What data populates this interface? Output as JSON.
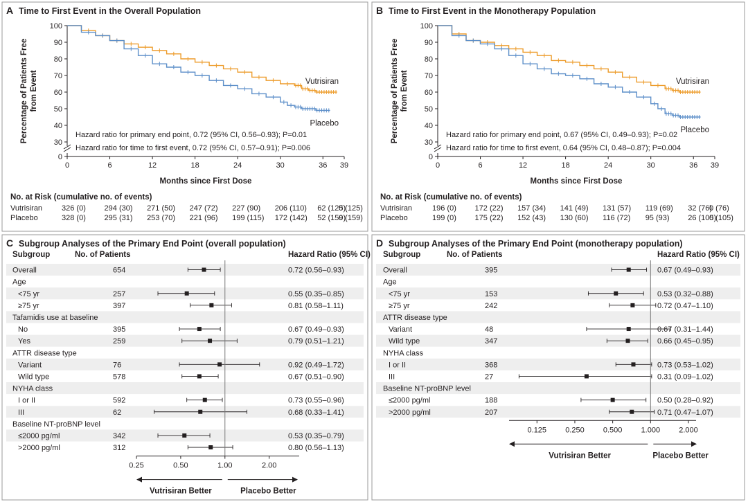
{
  "colors": {
    "vutrisiran": "#ed9c2b",
    "placebo": "#5d8fc9",
    "band": "#eeeeee",
    "border": "#9a9a9a",
    "ink": "#231f20"
  },
  "panels": {
    "a": {
      "letter": "A",
      "title": "Time to First Event in the Overall Population"
    },
    "b": {
      "letter": "B",
      "title": "Time to First Event in the Monotherapy Population"
    },
    "c": {
      "letter": "C",
      "title": "Subgroup Analyses of the Primary End Point (overall population)"
    },
    "d": {
      "letter": "D",
      "title": "Subgroup Analyses of the Primary End Point (monotherapy population)"
    }
  },
  "chart_data": [
    {
      "id": "km_overall",
      "type": "line",
      "title": "Time to First Event in the Overall Population",
      "xlabel": "Months since First Dose",
      "ylabel": "Percentage of Patients Free from Event",
      "xlim": [
        0,
        39
      ],
      "xticks": [
        0,
        6,
        12,
        18,
        24,
        30,
        36,
        39
      ],
      "ylim": [
        0,
        100
      ],
      "yticks": [
        0,
        30,
        40,
        50,
        60,
        70,
        80,
        90,
        100
      ],
      "y_axis_break": true,
      "series": [
        {
          "name": "Vutrisiran",
          "x": [
            0,
            2,
            4,
            6,
            8,
            10,
            12,
            14,
            16,
            18,
            20,
            22,
            24,
            26,
            28,
            30,
            32,
            33,
            34,
            35,
            36,
            37,
            38
          ],
          "y": [
            100,
            97,
            94,
            91,
            89,
            87,
            85,
            83,
            80,
            78,
            76,
            74,
            72,
            69,
            67,
            65,
            64,
            62,
            61,
            60,
            60,
            60,
            60
          ]
        },
        {
          "name": "Placebo",
          "x": [
            0,
            2,
            4,
            6,
            8,
            10,
            12,
            14,
            16,
            18,
            20,
            22,
            24,
            26,
            28,
            30,
            31,
            32,
            33,
            34,
            35,
            36,
            37
          ],
          "y": [
            100,
            96,
            94,
            91,
            86,
            82,
            77,
            75,
            72,
            70,
            67,
            64,
            62,
            59,
            57,
            54,
            52,
            51,
            50,
            50,
            49,
            49,
            49
          ]
        }
      ],
      "annotations": [
        "Hazard ratio for primary end point, 0.72 (95% CI, 0.56–0.93); P=0.01",
        "Hazard ratio for time to first event, 0.72 (95% CI, 0.57–0.91); P=0.006"
      ],
      "at_risk": {
        "title": "No. at Risk (cumulative no. of events)",
        "rows": [
          {
            "label": "Vutrisiran",
            "values": [
              "326 (0)",
              "294 (30)",
              "271 (50)",
              "247 (72)",
              "227 (90)",
              "206 (110)",
              "62 (125)",
              "0 (125)"
            ]
          },
          {
            "label": "Placebo",
            "values": [
              "328 (0)",
              "295 (31)",
              "253 (70)",
              "221 (96)",
              "199 (115)",
              "172 (142)",
              "52 (159)",
              "0 (159)"
            ]
          }
        ]
      }
    },
    {
      "id": "km_mono",
      "type": "line",
      "title": "Time to First Event in the Monotherapy Population",
      "xlabel": "Months since First Dose",
      "ylabel": "Percentage of Patients Free from Event",
      "xlim": [
        0,
        39
      ],
      "xticks": [
        0,
        6,
        12,
        18,
        24,
        30,
        36,
        39
      ],
      "ylim": [
        0,
        100
      ],
      "yticks": [
        0,
        30,
        40,
        50,
        60,
        70,
        80,
        90,
        100
      ],
      "y_axis_break": true,
      "series": [
        {
          "name": "Vutrisiran",
          "x": [
            0,
            2,
            4,
            6,
            8,
            10,
            12,
            14,
            16,
            18,
            20,
            22,
            24,
            26,
            28,
            30,
            32,
            33,
            34,
            35,
            36,
            37
          ],
          "y": [
            100,
            95,
            91,
            90,
            88,
            86,
            84,
            82,
            79,
            78,
            76,
            74,
            72,
            69,
            66,
            64,
            62,
            61,
            60,
            60,
            60,
            60
          ]
        },
        {
          "name": "Placebo",
          "x": [
            0,
            2,
            4,
            6,
            8,
            10,
            12,
            14,
            16,
            18,
            20,
            22,
            24,
            26,
            28,
            30,
            31,
            32,
            33,
            34,
            35,
            36,
            37
          ],
          "y": [
            100,
            94,
            91,
            89,
            86,
            82,
            77,
            74,
            71,
            70,
            68,
            65,
            63,
            60,
            57,
            53,
            50,
            47,
            46,
            45,
            45,
            45,
            45
          ]
        }
      ],
      "annotations": [
        "Hazard ratio for primary end point, 0.67 (95% CI, 0.49–0.93); P=0.02",
        "Hazard ratio for time to first event, 0.64 (95% CI, 0.48–0.87); P=0.004"
      ],
      "at_risk": {
        "title": "No. at Risk (cumulative no. of events)",
        "rows": [
          {
            "label": "Vutrisiran",
            "values": [
              "196 (0)",
              "172 (22)",
              "157 (34)",
              "141 (49)",
              "131 (57)",
              "119 (69)",
              "32 (76)",
              "0 (76)"
            ]
          },
          {
            "label": "Placebo",
            "values": [
              "199 (0)",
              "175 (22)",
              "152 (43)",
              "130 (60)",
              "116 (72)",
              "95 (93)",
              "26 (105)",
              "0 (105)"
            ]
          }
        ]
      }
    },
    {
      "id": "forest_overall",
      "type": "forest",
      "title": "Subgroup Analyses of the Primary End Point (overall population)",
      "headers": {
        "subgroup": "Subgroup",
        "patients": "No. of Patients",
        "hr": "Hazard Ratio (95% CI)"
      },
      "xscale": "log",
      "xlim": [
        0.25,
        3.2
      ],
      "xticks": [
        0.25,
        0.5,
        1.0,
        2.0
      ],
      "xtick_labels": [
        "0.25",
        "0.50",
        "1.00",
        "2.00"
      ],
      "favors_left": "Vutrisiran Better",
      "favors_right": "Placebo Better",
      "rows": [
        {
          "label": "Overall",
          "indent": false,
          "n": "654",
          "hr": 0.72,
          "lo": 0.56,
          "hi": 0.93,
          "text": "0.72 (0.56–0.93)"
        },
        {
          "label": "Age",
          "indent": false,
          "header": true
        },
        {
          "label": "<75 yr",
          "indent": true,
          "n": "257",
          "hr": 0.55,
          "lo": 0.35,
          "hi": 0.85,
          "text": "0.55 (0.35–0.85)"
        },
        {
          "label": "≥75 yr",
          "indent": true,
          "n": "397",
          "hr": 0.81,
          "lo": 0.58,
          "hi": 1.11,
          "text": "0.81 (0.58–1.11)"
        },
        {
          "label": "Tafamidis use at baseline",
          "indent": false,
          "header": true
        },
        {
          "label": "No",
          "indent": true,
          "n": "395",
          "hr": 0.67,
          "lo": 0.49,
          "hi": 0.93,
          "text": "0.67 (0.49–0.93)"
        },
        {
          "label": "Yes",
          "indent": true,
          "n": "259",
          "hr": 0.79,
          "lo": 0.51,
          "hi": 1.21,
          "text": "0.79 (0.51–1.21)"
        },
        {
          "label": "ATTR disease type",
          "indent": false,
          "header": true
        },
        {
          "label": "Variant",
          "indent": true,
          "n": "76",
          "hr": 0.92,
          "lo": 0.49,
          "hi": 1.72,
          "text": "0.92 (0.49–1.72)"
        },
        {
          "label": "Wild type",
          "indent": true,
          "n": "578",
          "hr": 0.67,
          "lo": 0.51,
          "hi": 0.9,
          "text": "0.67 (0.51–0.90)"
        },
        {
          "label": "NYHA class",
          "indent": false,
          "header": true
        },
        {
          "label": "I or II",
          "indent": true,
          "n": "592",
          "hr": 0.73,
          "lo": 0.55,
          "hi": 0.96,
          "text": "0.73 (0.55–0.96)"
        },
        {
          "label": "III",
          "indent": true,
          "n": "62",
          "hr": 0.68,
          "lo": 0.33,
          "hi": 1.41,
          "text": "0.68 (0.33–1.41)"
        },
        {
          "label": "Baseline NT-proBNP level",
          "indent": false,
          "header": true
        },
        {
          "label": "≤2000 pg/ml",
          "indent": true,
          "n": "342",
          "hr": 0.53,
          "lo": 0.35,
          "hi": 0.79,
          "text": "0.53 (0.35–0.79)"
        },
        {
          "label": ">2000 pg/ml",
          "indent": true,
          "n": "312",
          "hr": 0.8,
          "lo": 0.56,
          "hi": 1.13,
          "text": "0.80 (0.56–1.13)"
        }
      ]
    },
    {
      "id": "forest_mono",
      "type": "forest",
      "title": "Subgroup Analyses of the Primary End Point (monotherapy population)",
      "headers": {
        "subgroup": "Subgroup",
        "patients": "No. of Patients",
        "hr": "Hazard Ratio (95% CI)"
      },
      "xscale": "log",
      "xlim": [
        0.075,
        2.3
      ],
      "xticks": [
        0.125,
        0.25,
        0.5,
        1.0,
        2.0
      ],
      "xtick_labels": [
        "0.125",
        "0.250",
        "0.500",
        "1.000",
        "2.000"
      ],
      "favors_left": "Vutrisiran Better",
      "favors_right": "Placebo Better",
      "rows": [
        {
          "label": "Overall",
          "indent": false,
          "n": "395",
          "hr": 0.67,
          "lo": 0.49,
          "hi": 0.93,
          "text": "0.67 (0.49–0.93)"
        },
        {
          "label": "Age",
          "indent": false,
          "header": true
        },
        {
          "label": "<75 yr",
          "indent": true,
          "n": "153",
          "hr": 0.53,
          "lo": 0.32,
          "hi": 0.88,
          "text": "0.53 (0.32–0.88)"
        },
        {
          "label": "≥75 yr",
          "indent": true,
          "n": "242",
          "hr": 0.72,
          "lo": 0.47,
          "hi": 1.1,
          "text": "0.72 (0.47–1.10)"
        },
        {
          "label": "ATTR disease type",
          "indent": false,
          "header": true
        },
        {
          "label": "Variant",
          "indent": true,
          "n": "48",
          "hr": 0.67,
          "lo": 0.31,
          "hi": 1.44,
          "text": "0.67 (0.31–1.44)"
        },
        {
          "label": "Wild type",
          "indent": true,
          "n": "347",
          "hr": 0.66,
          "lo": 0.45,
          "hi": 0.95,
          "text": "0.66 (0.45–0.95)"
        },
        {
          "label": "NYHA class",
          "indent": false,
          "header": true
        },
        {
          "label": "I or II",
          "indent": true,
          "n": "368",
          "hr": 0.73,
          "lo": 0.53,
          "hi": 1.02,
          "text": "0.73 (0.53–1.02)"
        },
        {
          "label": "III",
          "indent": true,
          "n": "27",
          "hr": 0.31,
          "lo": 0.09,
          "hi": 1.02,
          "text": "0.31 (0.09–1.02)"
        },
        {
          "label": "Baseline NT-proBNP level",
          "indent": false,
          "header": true
        },
        {
          "label": "≤2000 pg/ml",
          "indent": true,
          "n": "188",
          "hr": 0.5,
          "lo": 0.28,
          "hi": 0.92,
          "text": "0.50 (0.28–0.92)"
        },
        {
          "label": ">2000 pg/ml",
          "indent": true,
          "n": "207",
          "hr": 0.71,
          "lo": 0.47,
          "hi": 1.07,
          "text": "0.71 (0.47–1.07)"
        }
      ]
    }
  ]
}
